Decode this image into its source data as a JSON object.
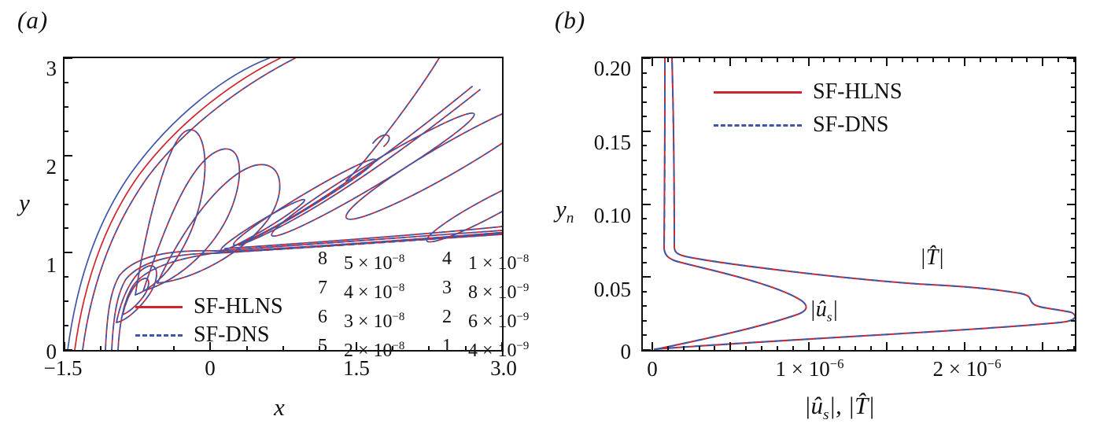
{
  "colors": {
    "red": "#d0242e",
    "blue": "#4056a8",
    "axis": "#111111"
  },
  "figure": {
    "panel_a_label": "(a)",
    "panel_b_label": "(b)"
  },
  "panel_a": {
    "x_label": "x",
    "y_label": "y",
    "x_ticks": [
      "−1.5",
      "0",
      "1.5",
      "3.0"
    ],
    "y_ticks": [
      "3",
      "2",
      "1",
      "0"
    ],
    "legend": [
      {
        "label": "SF-HLNS",
        "style": "solid-red"
      },
      {
        "label": "SF-DNS",
        "style": "dashed-blue"
      }
    ],
    "contour_levels": [
      {
        "n": "8",
        "base": "5 × 10",
        "exp": "−8"
      },
      {
        "n": "7",
        "base": "4 × 10",
        "exp": "−8"
      },
      {
        "n": "6",
        "base": "3 × 10",
        "exp": "−8"
      },
      {
        "n": "5",
        "base": "2 × 10",
        "exp": "−8"
      },
      {
        "n": "4",
        "base": "1 × 10",
        "exp": "−8"
      },
      {
        "n": "3",
        "base": "8 × 10",
        "exp": "−9"
      },
      {
        "n": "2",
        "base": "6 × 10",
        "exp": "−9"
      },
      {
        "n": "1",
        "base": "4 × 10",
        "exp": "−9"
      }
    ]
  },
  "panel_b": {
    "y_label": {
      "main": "y",
      "sub": "n"
    },
    "x_label": {
      "p1": "|û",
      "sub1": "s",
      "p2": "|, |T̂|"
    },
    "x_ticks": [
      {
        "base": "0",
        "exp": ""
      },
      {
        "base": "1 × 10",
        "exp": "−6"
      },
      {
        "base": "2 × 10",
        "exp": "−6"
      }
    ],
    "y_ticks": [
      "0.20",
      "0.15",
      "0.10",
      "0.05",
      "0"
    ],
    "legend": [
      {
        "label": "SF-HLNS",
        "style": "solid-red"
      },
      {
        "label": "SF-DNS",
        "style": "dashed-blue"
      }
    ],
    "curve_labels": {
      "T": "|T̂|",
      "us": {
        "p1": "|û",
        "sub": "s",
        "p2": "|"
      }
    }
  },
  "chart_data": [
    {
      "panel": "a",
      "type": "line",
      "subtype": "contour",
      "title": "",
      "xlabel": "x",
      "ylabel": "y",
      "xlim": [
        -1.5,
        3.0
      ],
      "ylim": [
        0,
        3
      ],
      "grid": false,
      "series": [
        {
          "name": "SF-HLNS",
          "style": "solid red contour lines"
        },
        {
          "name": "SF-DNS",
          "style": "dashed blue contour lines, coincident with SF-HLNS"
        }
      ],
      "contour_levels": [
        {
          "index": 8,
          "value": 5e-08
        },
        {
          "index": 7,
          "value": 4e-08
        },
        {
          "index": 6,
          "value": 3e-08
        },
        {
          "index": 5,
          "value": 2e-08
        },
        {
          "index": 4,
          "value": 1e-08
        },
        {
          "index": 3,
          "value": 8e-09
        },
        {
          "index": 2,
          "value": 6e-09
        },
        {
          "index": 1,
          "value": 4e-09
        }
      ],
      "description": "Disturbance-amplitude contours around a parabolic leading edge: bow-shock-like curves sweep from lower left to upper right, nested lobes near the nose, a dense near-horizontal boundary-layer band from (0,1) to (3,1.25), and elongated diagonal wavepacket lobes toward the upper right."
    },
    {
      "panel": "b",
      "type": "line",
      "title": "",
      "xlabel": "|u_s^hat|, |T^hat|",
      "ylabel": "y_n",
      "xlim": [
        0,
        2.72e-06
      ],
      "ylim": [
        0,
        0.2
      ],
      "legend_position": "top-center",
      "series": [
        {
          "name": "|u_s^hat| (SF-HLNS; SF-DNS coincides)",
          "points_x_amplitude_y_yn": [
            [
              0,
              0
            ],
            [
              4e-07,
              0.008
            ],
            [
              8.5e-07,
              0.018
            ],
            [
              1e-06,
              0.027
            ],
            [
              7e-07,
              0.04
            ],
            [
              3e-07,
              0.052
            ],
            [
              1.3e-07,
              0.062
            ],
            [
              1e-07,
              0.07
            ],
            [
              1.05e-07,
              0.2
            ]
          ]
        },
        {
          "name": "|T^hat| (SF-HLNS; SF-DNS coincides)",
          "points_x_amplitude_y_yn": [
            [
              0,
              0
            ],
            [
              1e-06,
              0.007
            ],
            [
              2e-06,
              0.013
            ],
            [
              2.65e-06,
              0.019
            ],
            [
              2.45e-06,
              0.028
            ],
            [
              2.3e-06,
              0.034
            ],
            [
              2.35e-06,
              0.038
            ],
            [
              1.6e-06,
              0.047
            ],
            [
              7e-07,
              0.057
            ],
            [
              2.5e-07,
              0.064
            ],
            [
              1.7e-07,
              0.07
            ],
            [
              1.6e-07,
              0.2
            ]
          ]
        }
      ]
    }
  ]
}
